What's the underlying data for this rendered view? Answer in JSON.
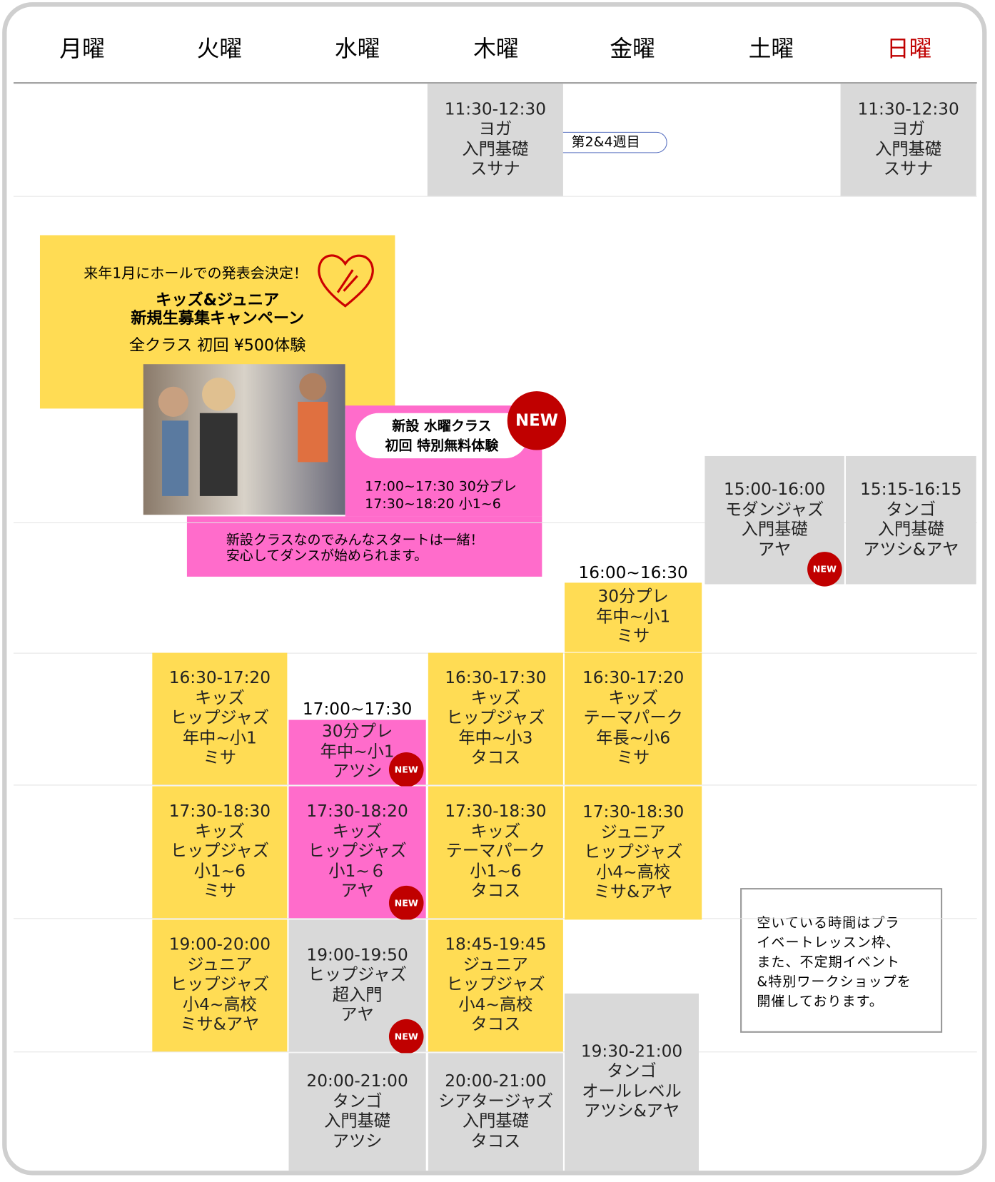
{
  "days": [
    "月曜",
    "火曜",
    "水曜",
    "木曜",
    "金曜",
    "土曜",
    "日曜"
  ],
  "badge": "NEW",
  "week_note": "第2&4週目",
  "classes": [
    {
      "lines": [
        "11:30-12:30",
        "ヨガ",
        "入門基礎",
        "スサナ"
      ],
      "color": "#d9d9d9"
    },
    {
      "lines": [
        "11:30-12:30",
        "ヨガ",
        "入門基礎",
        "スサナ"
      ],
      "color": "#d9d9d9"
    },
    {
      "lines": [
        "15:00-16:00",
        "モダンジャズ",
        "入門基礎",
        "アヤ"
      ],
      "color": "#d9d9d9",
      "new": true
    },
    {
      "lines": [
        "15:15-16:15",
        "タンゴ",
        "入門基礎",
        "アツシ&アヤ"
      ],
      "color": "#d9d9d9"
    },
    {
      "time_label": "16:00~16:30",
      "lines": [
        "30分プレ",
        "年中~小1",
        "ミサ"
      ],
      "color": "#ffdc54"
    },
    {
      "lines": [
        "16:30-17:20",
        "キッズ",
        "ヒップジャズ",
        "年中~小1",
        "ミサ"
      ],
      "color": "#ffdc54"
    },
    {
      "time_label": "17:00~17:30",
      "lines": [
        "30分プレ",
        "年中~小1",
        "アツシ"
      ],
      "color": "#ff6ccb",
      "new": true
    },
    {
      "lines": [
        "16:30-17:30",
        "キッズ",
        "ヒップジャズ",
        "年中~小3",
        "タコス"
      ],
      "color": "#ffdc54"
    },
    {
      "lines": [
        "16:30-17:20",
        "キッズ",
        "テーマパーク",
        "年長~小6",
        "ミサ"
      ],
      "color": "#ffdc54"
    },
    {
      "lines": [
        "17:30-18:30",
        "キッズ",
        "ヒップジャズ",
        "小1~6",
        "ミサ"
      ],
      "color": "#ffdc54"
    },
    {
      "lines": [
        "17:30-18:20",
        "キッズ",
        "ヒップジャズ",
        "小1~６",
        "アヤ"
      ],
      "color": "#ff6ccb",
      "new": true
    },
    {
      "lines": [
        "17:30-18:30",
        "キッズ",
        "テーマパーク",
        "小1~6",
        "タコス"
      ],
      "color": "#ffdc54"
    },
    {
      "lines": [
        "17:30-18:30",
        "ジュニア",
        "ヒップジャズ",
        "小4~高校",
        "ミサ&アヤ"
      ],
      "color": "#ffdc54"
    },
    {
      "lines": [
        "19:00-20:00",
        "ジュニア",
        "ヒップジャズ",
        "小4~高校",
        "ミサ&アヤ"
      ],
      "color": "#ffdc54"
    },
    {
      "lines": [
        "19:00-19:50",
        "ヒップジャズ",
        "超入門",
        "アヤ"
      ],
      "color": "#d9d9d9",
      "new": true
    },
    {
      "lines": [
        "18:45-19:45",
        "ジュニア",
        "ヒップジャズ",
        "小4~高校",
        "タコス"
      ],
      "color": "#ffdc54"
    },
    {
      "lines": [
        "19:30-21:00",
        "タンゴ",
        "オールレベル",
        "アツシ&アヤ"
      ],
      "color": "#d9d9d9"
    },
    {
      "lines": [
        "20:00-21:00",
        "タンゴ",
        "入門基礎",
        "アツシ"
      ],
      "color": "#d9d9d9"
    },
    {
      "lines": [
        "20:00-21:00",
        "シアタージャズ",
        "入門基礎",
        "タコス"
      ],
      "color": "#d9d9d9"
    }
  ],
  "promo": {
    "headline": "来年1月にホールでの発表会決定！",
    "title": [
      "キッズ&ジュニア",
      "新規生募集キャンペーン"
    ],
    "offer": "全クラス 初回 ¥500体験"
  },
  "new_class": {
    "pill": [
      "新設 水曜クラス",
      "初回 特別無料体験"
    ],
    "times": [
      "17:00~17:30 30分プレ",
      "17:30~18:20 小1~6"
    ],
    "message": [
      "新設クラスなのでみんなスタートは一緒！",
      "安心してダンスが始められます。"
    ]
  },
  "note": [
    "空いている時間はプラ",
    "イベートレッスン枠、",
    "また、不定期イベント",
    "&特別ワークショップを",
    "開催しております。"
  ]
}
